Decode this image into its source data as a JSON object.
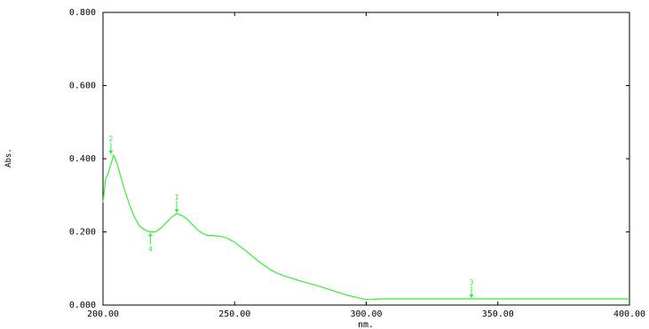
{
  "chart_data": {
    "type": "line",
    "xlabel": "nm.",
    "ylabel": "Abs.",
    "xlim": [
      200,
      400
    ],
    "ylim": [
      0,
      0.8
    ],
    "x_ticks": [
      "200.00",
      "250.00",
      "300.00",
      "350.00",
      "400.00"
    ],
    "y_ticks": [
      "0.000",
      "0.200",
      "0.400",
      "0.600",
      "0.800"
    ],
    "grid": false,
    "series": [
      {
        "color": "#33ee33",
        "x": [
          200,
          201,
          202,
          203,
          204,
          205,
          206,
          208,
          210,
          212,
          214,
          216,
          218,
          220,
          222,
          224,
          226,
          228,
          230,
          232,
          234,
          236,
          238,
          240,
          242,
          244,
          246,
          248,
          250,
          252,
          254,
          256,
          258,
          260,
          262,
          264,
          266,
          268,
          270,
          275,
          280,
          285,
          290,
          295,
          298,
          300,
          302,
          304,
          306,
          310,
          320,
          330,
          340,
          350,
          360,
          370,
          380,
          390,
          400
        ],
        "y": [
          0.28,
          0.345,
          0.36,
          0.385,
          0.41,
          0.395,
          0.37,
          0.32,
          0.275,
          0.24,
          0.215,
          0.205,
          0.2,
          0.2,
          0.21,
          0.225,
          0.24,
          0.25,
          0.245,
          0.235,
          0.22,
          0.205,
          0.195,
          0.19,
          0.19,
          0.188,
          0.186,
          0.18,
          0.172,
          0.16,
          0.15,
          0.138,
          0.126,
          0.115,
          0.105,
          0.095,
          0.088,
          0.082,
          0.077,
          0.066,
          0.056,
          0.045,
          0.033,
          0.023,
          0.018,
          0.015,
          0.015,
          0.016,
          0.017,
          0.017,
          0.017,
          0.017,
          0.017,
          0.017,
          0.017,
          0.017,
          0.017,
          0.017,
          0.017
        ]
      }
    ],
    "annotations": [
      {
        "label": "1",
        "x": 228,
        "y": 0.25
      },
      {
        "label": "2",
        "x": 203,
        "y": 0.41
      },
      {
        "label": "4",
        "x": 218,
        "y": 0.2
      },
      {
        "label": "3",
        "x": 340,
        "y": 0.017
      }
    ]
  }
}
